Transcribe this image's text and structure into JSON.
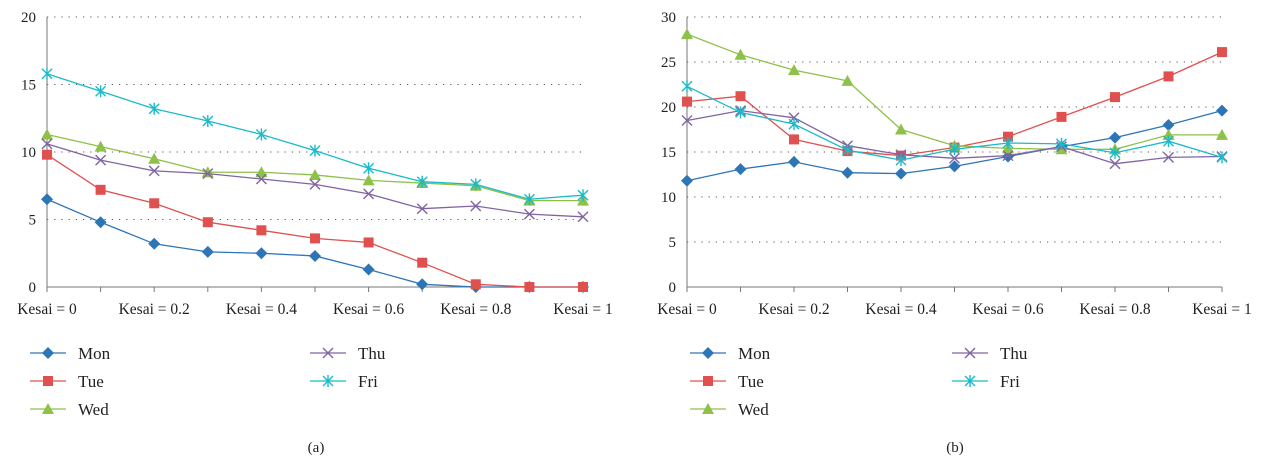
{
  "chart_data": [
    {
      "type": "line",
      "panel_label": "(a)",
      "categories": [
        "Kesai = 0",
        "",
        "Kesai = 0.2",
        "",
        "Kesai = 0.4",
        "",
        "Kesai = 0.6",
        "",
        "Kesai = 0.8",
        "",
        "Kesai = 1"
      ],
      "xtick_labels": [
        "Kesai = 0",
        "Kesai = 0.2",
        "Kesai = 0.4",
        "Kesai = 0.6",
        "Kesai = 0.8",
        "Kesai = 1"
      ],
      "ylim": [
        0,
        20
      ],
      "yticks": [
        0,
        5,
        10,
        15,
        20
      ],
      "grid": "dotted horizontal",
      "legend_position": "bottom",
      "series": [
        {
          "name": "Mon",
          "color": "#2E75B6",
          "marker": "diamond",
          "values": [
            6.5,
            4.8,
            3.2,
            2.6,
            2.5,
            2.3,
            1.3,
            0.2,
            0.0,
            0.0,
            0.0
          ]
        },
        {
          "name": "Tue",
          "color": "#E0504F",
          "marker": "square",
          "values": [
            9.8,
            7.2,
            6.2,
            4.8,
            4.2,
            3.6,
            3.3,
            1.8,
            0.2,
            0.0,
            0.0
          ]
        },
        {
          "name": "Wed",
          "color": "#8DC149",
          "marker": "triangle",
          "values": [
            11.3,
            10.4,
            9.5,
            8.5,
            8.5,
            8.3,
            7.9,
            7.7,
            7.5,
            6.4,
            6.4
          ]
        },
        {
          "name": "Thu",
          "color": "#8064A2",
          "marker": "x",
          "values": [
            10.6,
            9.4,
            8.6,
            8.4,
            8.0,
            7.6,
            6.9,
            5.8,
            6.0,
            5.4,
            5.2
          ]
        },
        {
          "name": "Fri",
          "color": "#1ABBC9",
          "marker": "asterisk",
          "values": [
            15.8,
            14.5,
            13.2,
            12.3,
            11.3,
            10.1,
            8.8,
            7.8,
            7.6,
            6.5,
            6.8
          ]
        }
      ]
    },
    {
      "type": "line",
      "panel_label": "(b)",
      "categories": [
        "Kesai = 0",
        "",
        "Kesai = 0.2",
        "",
        "Kesai = 0.4",
        "",
        "Kesai = 0.6",
        "",
        "Kesai = 0.8",
        "",
        "Kesai = 1"
      ],
      "xtick_labels": [
        "Kesai = 0",
        "Kesai = 0.2",
        "Kesai = 0.4",
        "Kesai = 0.6",
        "Kesai = 0.8",
        "Kesai = 1"
      ],
      "ylim": [
        0,
        30
      ],
      "yticks": [
        0,
        5,
        10,
        15,
        20,
        25,
        30
      ],
      "grid": "dotted horizontal",
      "legend_position": "bottom",
      "series": [
        {
          "name": "Mon",
          "color": "#2E75B6",
          "marker": "diamond",
          "values": [
            11.8,
            13.1,
            13.9,
            12.7,
            12.6,
            13.4,
            14.5,
            15.6,
            16.6,
            18.0,
            19.6
          ]
        },
        {
          "name": "Tue",
          "color": "#E0504F",
          "marker": "square",
          "values": [
            20.6,
            21.2,
            16.4,
            15.1,
            14.6,
            15.5,
            16.7,
            18.9,
            21.1,
            23.4,
            26.1
          ]
        },
        {
          "name": "Wed",
          "color": "#8DC149",
          "marker": "triangle",
          "values": [
            28.1,
            25.8,
            24.1,
            22.9,
            17.5,
            15.7,
            15.4,
            15.3,
            15.3,
            16.9,
            16.9
          ]
        },
        {
          "name": "Thu",
          "color": "#8064A2",
          "marker": "x",
          "values": [
            18.5,
            19.6,
            18.8,
            15.7,
            14.7,
            14.3,
            14.6,
            15.6,
            13.7,
            14.4,
            14.5
          ]
        },
        {
          "name": "Fri",
          "color": "#1ABBC9",
          "marker": "asterisk",
          "values": [
            22.3,
            19.4,
            18.1,
            15.2,
            14.1,
            15.3,
            16.0,
            15.9,
            14.9,
            16.2,
            14.4
          ]
        }
      ]
    }
  ]
}
